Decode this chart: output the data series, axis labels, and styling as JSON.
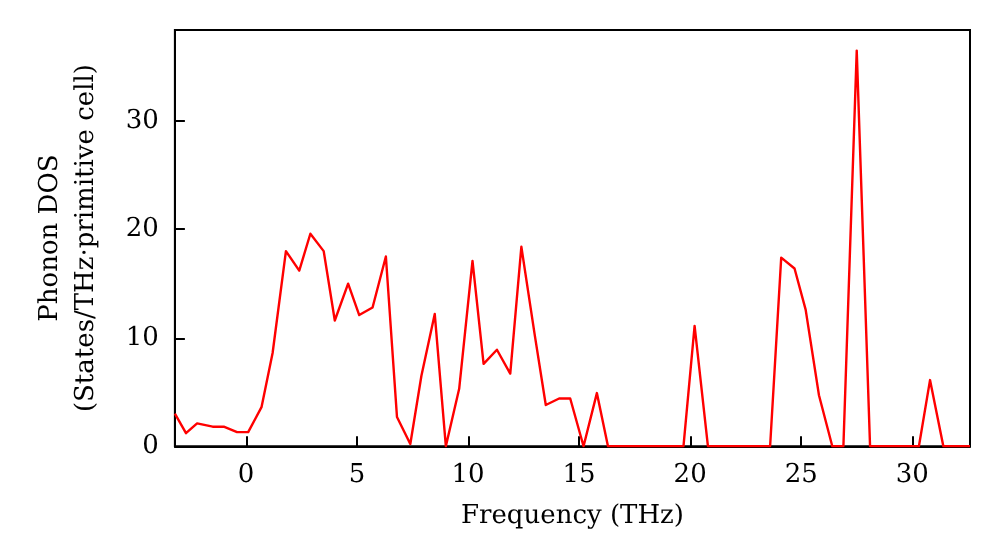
{
  "chart_data": {
    "type": "line",
    "xlabel": "Frequency (THz)",
    "ylabel": "Phonon DOS\n(States/THz·primitive cell)",
    "x": [
      -3.2,
      -2.7,
      -2.2,
      -1.5,
      -1.0,
      -0.4,
      0.1,
      0.7,
      1.2,
      1.8,
      2.4,
      2.9,
      3.5,
      4.0,
      4.6,
      5.1,
      5.7,
      6.3,
      6.8,
      7.4,
      7.9,
      8.5,
      9.0,
      9.6,
      10.2,
      10.7,
      11.3,
      11.9,
      12.4,
      13.0,
      13.5,
      14.1,
      14.6,
      15.2,
      15.8,
      16.3,
      17.0,
      18.0,
      19.0,
      19.7,
      20.2,
      20.8,
      22.0,
      23.0,
      23.6,
      24.1,
      24.7,
      25.2,
      25.8,
      26.4,
      26.9,
      27.5,
      28.1,
      29.0,
      30.3,
      30.8,
      31.4,
      32.6
    ],
    "series": [
      {
        "color": "#ff0000",
        "values": [
          3.0,
          1.2,
          2.1,
          1.8,
          1.8,
          1.3,
          1.3,
          3.6,
          8.6,
          18.0,
          16.2,
          19.6,
          18.0,
          11.6,
          15.0,
          12.1,
          12.8,
          17.5,
          2.7,
          0.2,
          6.5,
          12.2,
          0,
          5.3,
          17.1,
          7.6,
          8.9,
          6.7,
          18.4,
          10.3,
          3.8,
          4.4,
          4.4,
          0,
          4.9,
          0,
          0,
          0,
          0,
          0,
          11.1,
          0,
          0,
          0,
          0,
          17.4,
          16.4,
          12.6,
          4.7,
          0,
          0,
          36.5,
          0,
          0,
          0,
          6.1,
          0,
          0
        ]
      }
    ],
    "xlim": [
      -3.2,
      32.6
    ],
    "ylim": [
      0,
      38.4
    ],
    "xticks": [
      0,
      5,
      10,
      15,
      20,
      25,
      30
    ],
    "yticks": [
      0,
      10,
      20,
      30
    ],
    "grid": false,
    "marker": "none",
    "line_style": "solid"
  }
}
